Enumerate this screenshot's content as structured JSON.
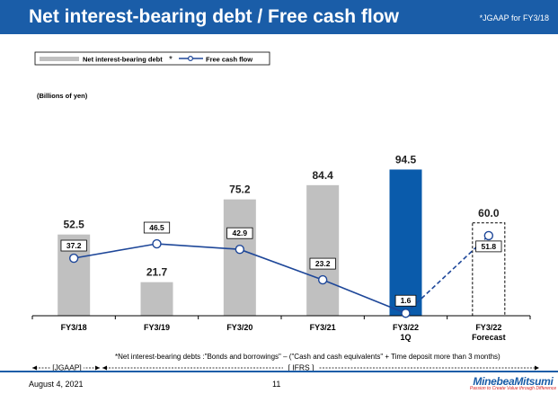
{
  "header": {
    "title": "Net interest-bearing debt / Free cash flow",
    "note": "*JGAAP for FY3/18"
  },
  "legend": {
    "bar_label": "Net interest-bearing debt",
    "bar_asterisk": "*",
    "line_label": "Free cash flow"
  },
  "unit_label": "(Billions of yen)",
  "footnote": "*Net interest-bearing debts :\"Bonds and borrowings\" – (\"Cash and cash equivalents\" + Time deposit more than 3 months)",
  "standards": {
    "jgaap": "[JGAAP]",
    "ifrs": "[ IFRS ]"
  },
  "footer": {
    "date": "August 4, 2021",
    "page": "11",
    "brand": "MinebeaMitsumi",
    "tagline": "Passion to Create Value through Difference"
  },
  "colors": {
    "title_bar": "#1a5da8",
    "bar_gray": "#c0c0c0",
    "bar_highlight": "#0a5bab",
    "line": "#1e4799"
  },
  "chart_data": {
    "type": "bar",
    "categories": [
      "FY3/18",
      "FY3/19",
      "FY3/20",
      "FY3/21",
      "FY3/22\n1Q",
      "FY3/22\nForecast"
    ],
    "series": [
      {
        "name": "Net interest-bearing debt",
        "values": [
          52.5,
          21.7,
          75.2,
          84.4,
          94.5,
          60.0
        ],
        "labels": [
          "52.5",
          "21.7",
          "75.2",
          "84.4",
          "94.5",
          "60.0"
        ],
        "styles": [
          "gray",
          "gray",
          "gray",
          "gray",
          "highlight",
          "dashed"
        ]
      },
      {
        "name": "Free cash flow",
        "type": "line",
        "values": [
          37.2,
          46.5,
          42.9,
          23.2,
          1.6,
          51.8
        ],
        "labels": [
          "37.2",
          "46.5",
          "42.9",
          "23.2",
          "1.6",
          "51.8"
        ],
        "dashed_last_segment": true
      }
    ],
    "ylim": [
      0,
      100
    ]
  }
}
